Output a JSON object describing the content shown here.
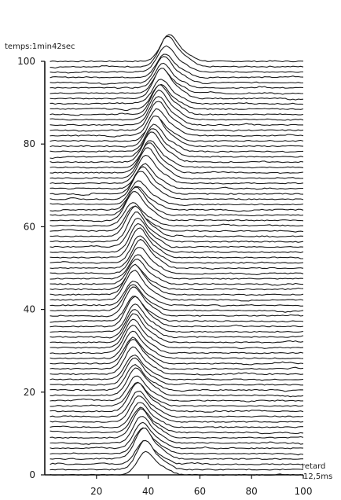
{
  "chart_data": {
    "type": "line",
    "title": "temps:1min42sec",
    "xlabel_lines": [
      "retard",
      "12,5ms"
    ],
    "ylabel": "",
    "xlim": [
      0,
      100
    ],
    "ylim": [
      0,
      100
    ],
    "x_ticks": [
      20,
      40,
      60,
      80,
      100
    ],
    "y_ticks": [
      0,
      20,
      40,
      60,
      80,
      100
    ],
    "grid": false,
    "legend": "none",
    "trace_count": 79,
    "peak_amplitude_in_y_units": 6.5,
    "peak_width_in_x_units": 4.5,
    "series": [
      {
        "values": [
          [
            0,
            39
          ],
          [
            5,
            38
          ],
          [
            10,
            37
          ],
          [
            15,
            36
          ],
          [
            20,
            35
          ],
          [
            25,
            34
          ],
          [
            30,
            34
          ],
          [
            35,
            35
          ],
          [
            40,
            34
          ],
          [
            45,
            35
          ],
          [
            50,
            37
          ],
          [
            55,
            36
          ],
          [
            60,
            34
          ],
          [
            65,
            36
          ],
          [
            70,
            39
          ],
          [
            75,
            41
          ],
          [
            80,
            43
          ],
          [
            85,
            44
          ],
          [
            90,
            45
          ],
          [
            95,
            46
          ],
          [
            100,
            48
          ]
        ]
      }
    ]
  }
}
